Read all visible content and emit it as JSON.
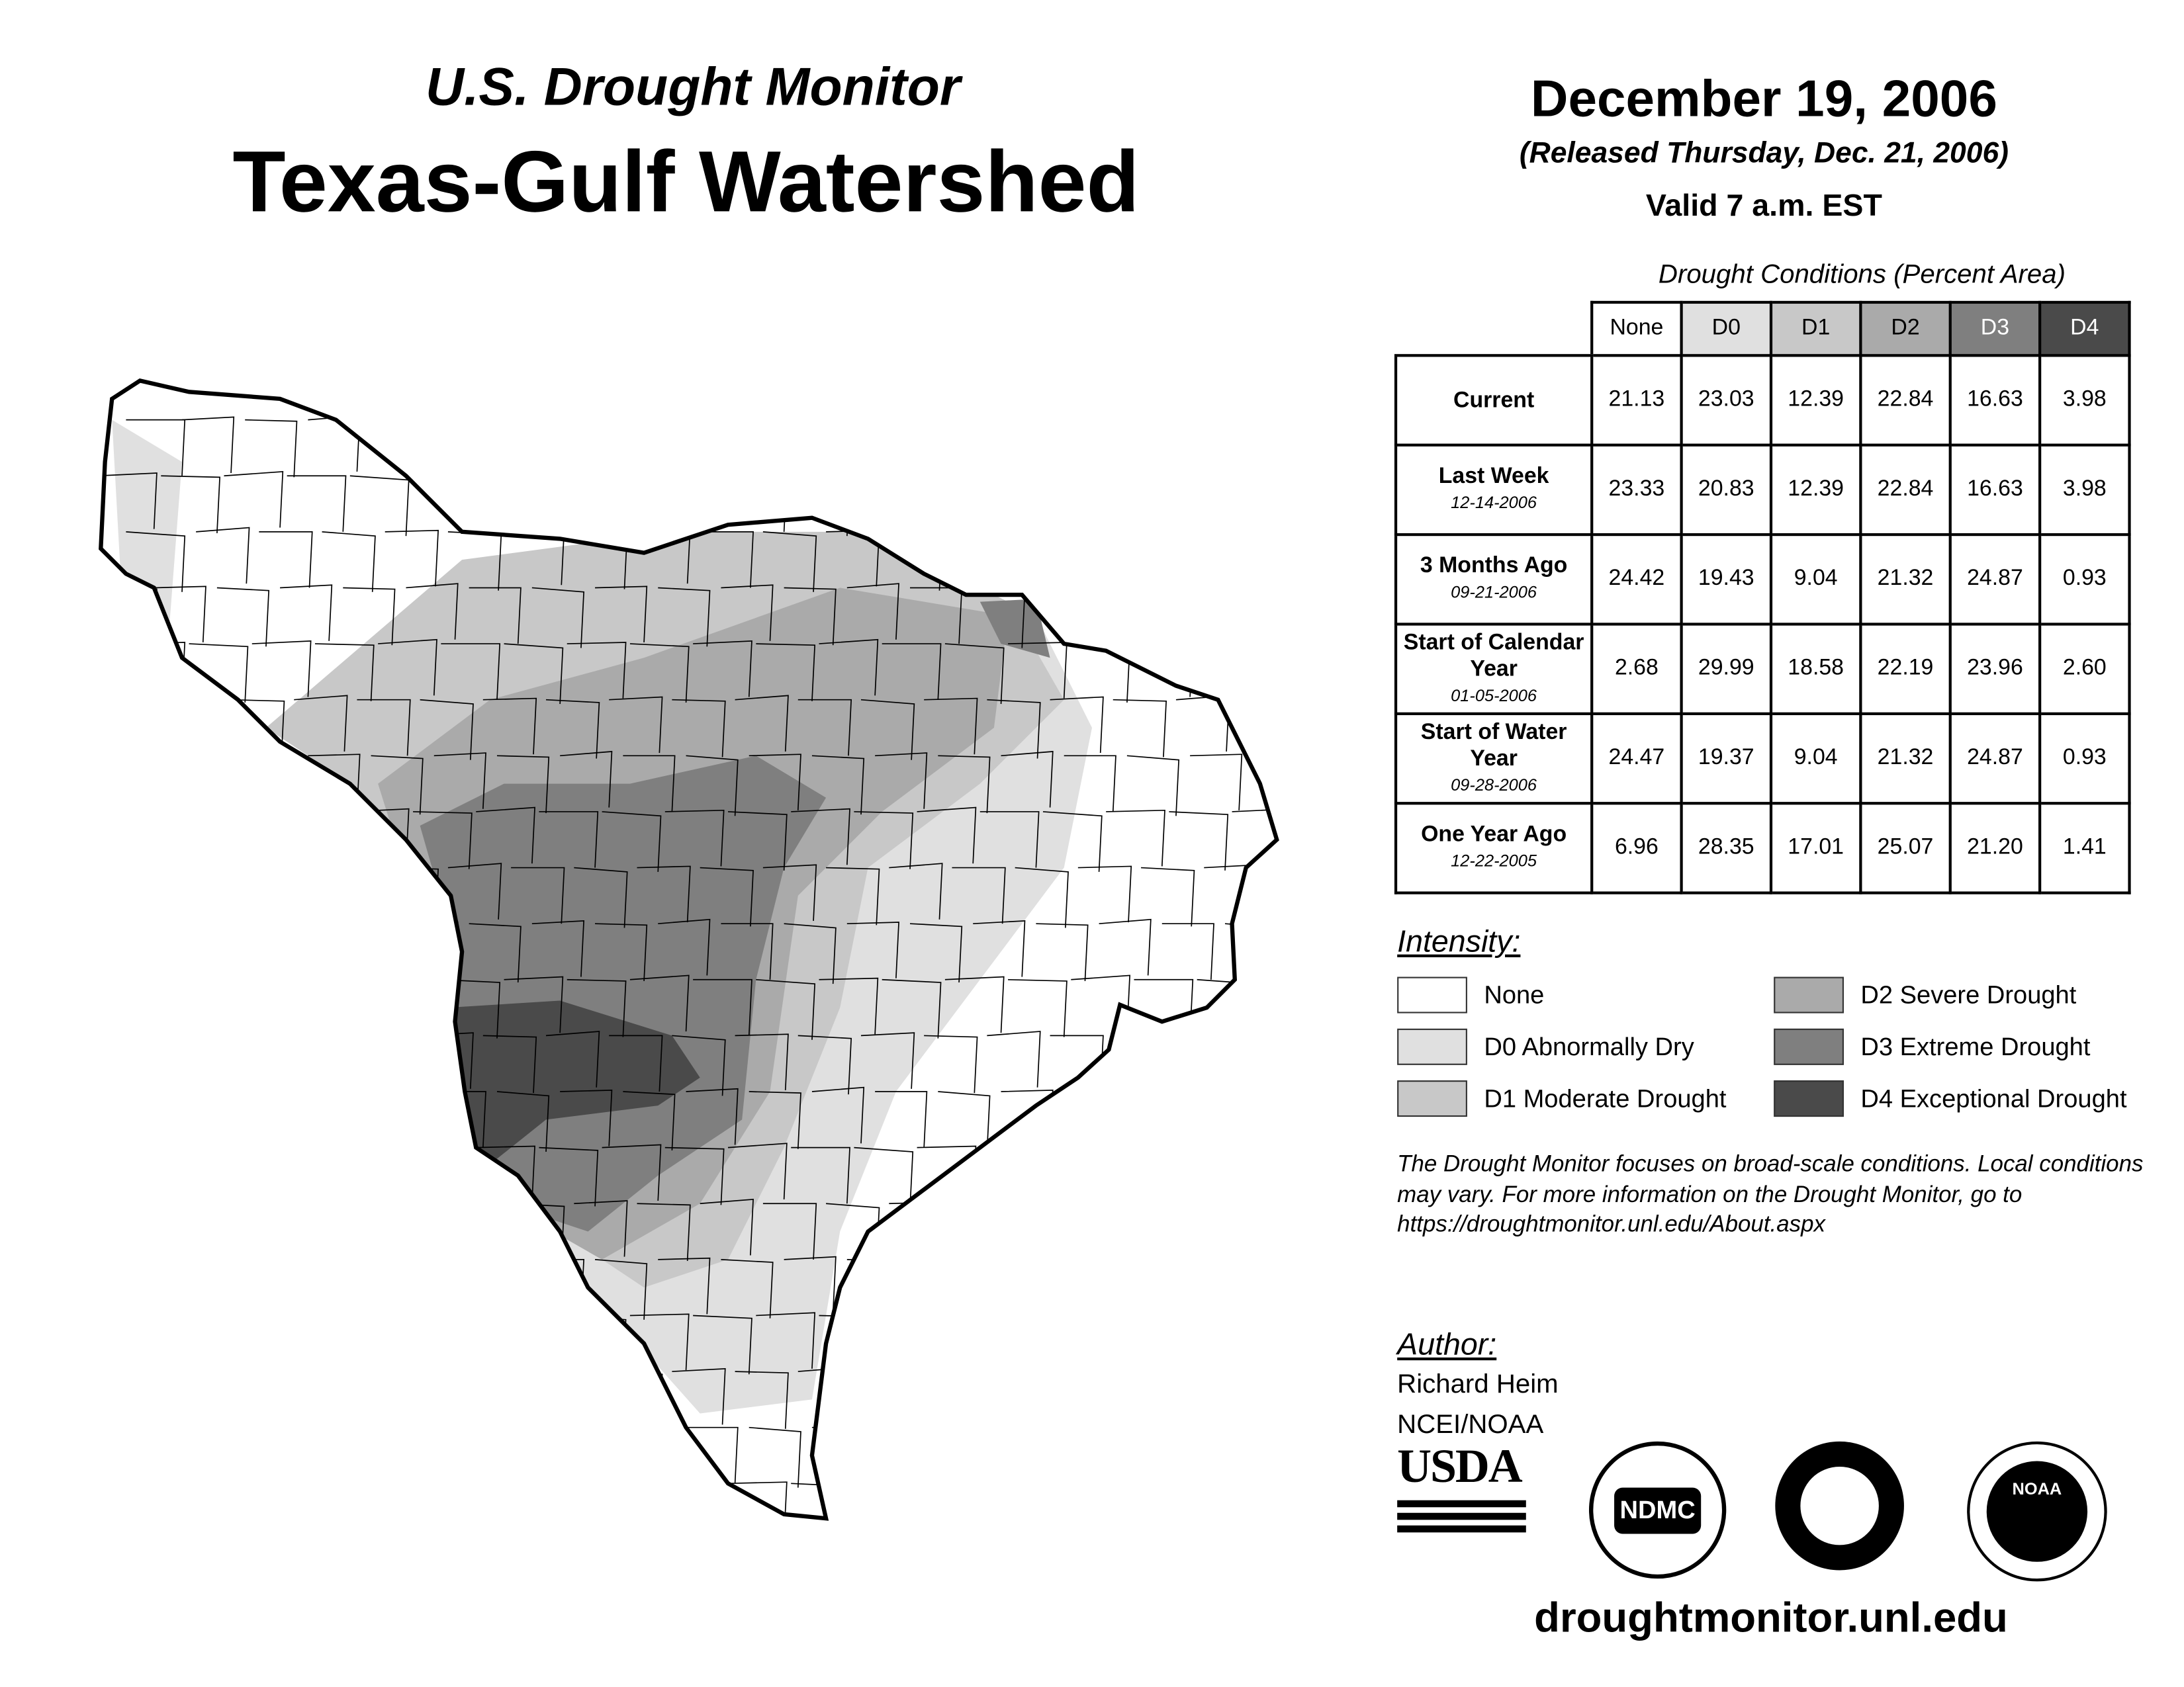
{
  "header": {
    "subtitle": "U.S. Drought Monitor",
    "title": "Texas-Gulf Watershed"
  },
  "date": {
    "map_date": "December 19, 2006",
    "released": "(Released Thursday, Dec. 21, 2006)",
    "valid": "Valid 7 a.m. EST"
  },
  "table": {
    "caption": "Drought Conditions (Percent Area)",
    "columns": [
      "None",
      "D0",
      "D1",
      "D2",
      "D3",
      "D4"
    ],
    "column_colors": [
      "#ffffff",
      "#e0e0e0",
      "#c8c8c8",
      "#aaaaaa",
      "#7f7f7f",
      "#4a4a4a"
    ],
    "rows": [
      {
        "label": "Current",
        "date": "",
        "values": [
          "21.13",
          "23.03",
          "12.39",
          "22.84",
          "16.63",
          "3.98"
        ]
      },
      {
        "label": "Last Week",
        "date": "12-14-2006",
        "values": [
          "23.33",
          "20.83",
          "12.39",
          "22.84",
          "16.63",
          "3.98"
        ]
      },
      {
        "label": "3 Months Ago",
        "date": "09-21-2006",
        "values": [
          "24.42",
          "19.43",
          "9.04",
          "21.32",
          "24.87",
          "0.93"
        ]
      },
      {
        "label": "Start of Calendar Year",
        "date": "01-05-2006",
        "values": [
          "2.68",
          "29.99",
          "18.58",
          "22.19",
          "23.96",
          "2.60"
        ]
      },
      {
        "label": "Start of Water Year",
        "date": "09-28-2006",
        "values": [
          "24.47",
          "19.37",
          "9.04",
          "21.32",
          "24.87",
          "0.93"
        ]
      },
      {
        "label": "One Year Ago",
        "date": "12-22-2005",
        "values": [
          "6.96",
          "28.35",
          "17.01",
          "25.07",
          "21.20",
          "1.41"
        ]
      }
    ]
  },
  "legend": {
    "title": "Intensity:",
    "items": [
      {
        "label": "None",
        "color": "#ffffff"
      },
      {
        "label": "D0 Abnormally Dry",
        "color": "#e0e0e0"
      },
      {
        "label": "D1 Moderate Drought",
        "color": "#c8c8c8"
      },
      {
        "label": "D2 Severe Drought",
        "color": "#aaaaaa"
      },
      {
        "label": "D3 Extreme Drought",
        "color": "#7f7f7f"
      },
      {
        "label": "D4 Exceptional Drought",
        "color": "#4a4a4a"
      }
    ]
  },
  "note": "The Drought Monitor focuses on broad-scale conditions. Local conditions may vary. For more information on the Drought Monitor, go to https://droughtmonitor.unl.edu/About.aspx",
  "author": {
    "title": "Author:",
    "name": "Richard Heim",
    "org": "NCEI/NOAA"
  },
  "logos": [
    "USDA",
    "NDMC",
    "NOAA"
  ],
  "url": "droughtmonitor.unl.edu"
}
